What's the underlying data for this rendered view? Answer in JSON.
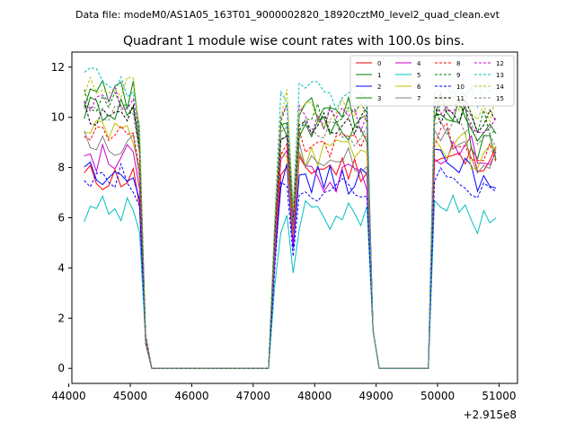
{
  "chart_data": {
    "type": "line",
    "suptitle": "Data file: modeM0/AS1A05_163T01_9000002820_18920cztM0_level2_quad_clean.evt",
    "title": "Quadrant 1 module wise count rates with 100.0s bins.",
    "xlabel": "",
    "ylabel": "",
    "x_offset_label": "+2.915e8",
    "xlim": [
      44050,
      51300
    ],
    "ylim": [
      -0.6,
      12.6
    ],
    "xticks": [
      44000,
      45000,
      46000,
      47000,
      48000,
      49000,
      50000,
      51000
    ],
    "yticks": [
      0,
      2,
      4,
      6,
      8,
      10,
      12
    ],
    "legend_position": "top-right",
    "x_start": 44250,
    "x_step": 100,
    "x_count": 68,
    "gaps": [
      [
        45350,
        47250
      ],
      [
        49050,
        49850
      ]
    ],
    "series": [
      {
        "name": "0",
        "color": "#ff0000",
        "dash": "solid",
        "levels": [
          7.6,
          7.9,
          8.0,
          8.3,
          8.4
        ]
      },
      {
        "name": "1",
        "color": "#008000",
        "dash": "solid",
        "levels": [
          10.4,
          9.6,
          9.6,
          9.9,
          8.9
        ]
      },
      {
        "name": "2",
        "color": "#0000ff",
        "dash": "solid",
        "levels": [
          7.9,
          7.8,
          7.5,
          8.3,
          7.6
        ]
      },
      {
        "name": "3",
        "color": "#008000",
        "dash": "solid",
        "levels": [
          10.9,
          9.9,
          10.2,
          10.4,
          9.6
        ]
      },
      {
        "name": "4",
        "color": "#cc00cc",
        "dash": "solid",
        "levels": [
          8.4,
          8.1,
          7.6,
          8.6,
          8.7
        ]
      },
      {
        "name": "5",
        "color": "#00bfbf",
        "dash": "solid",
        "levels": [
          6.4,
          6.0,
          6.1,
          6.7,
          5.9
        ]
      },
      {
        "name": "6",
        "color": "#bfbf00",
        "dash": "solid",
        "levels": [
          9.4,
          8.8,
          8.6,
          8.9,
          8.5
        ]
      },
      {
        "name": "7",
        "color": "#808080",
        "dash": "solid",
        "levels": [
          8.9,
          8.9,
          8.4,
          9.0,
          8.3
        ]
      },
      {
        "name": "8",
        "color": "#ff0000",
        "dash": "dashed",
        "levels": [
          9.3,
          9.1,
          8.9,
          9.3,
          8.8
        ]
      },
      {
        "name": "9",
        "color": "#008000",
        "dash": "dashed",
        "levels": [
          10.6,
          10.0,
          10.1,
          10.1,
          9.9
        ]
      },
      {
        "name": "10",
        "color": "#0000ff",
        "dash": "dashed",
        "levels": [
          7.6,
          7.2,
          7.1,
          7.4,
          7.3
        ]
      },
      {
        "name": "11",
        "color": "#000000",
        "dash": "dashed",
        "levels": [
          10.2,
          9.7,
          9.8,
          10.2,
          9.9
        ]
      },
      {
        "name": "12",
        "color": "#cc00cc",
        "dash": "dashed",
        "levels": [
          10.8,
          10.2,
          9.9,
          10.4,
          9.9
        ]
      },
      {
        "name": "13",
        "color": "#00bfbf",
        "dash": "dashed",
        "levels": [
          11.4,
          10.8,
          10.9,
          11.3,
          10.9
        ]
      },
      {
        "name": "14",
        "color": "#bfbf00",
        "dash": "dashed",
        "levels": [
          11.1,
          10.6,
          10.2,
          10.7,
          10.4
        ]
      },
      {
        "name": "15",
        "color": "#808080",
        "dash": "dashed",
        "levels": [
          10.0,
          9.6,
          9.3,
          9.6,
          9.4
        ]
      }
    ],
    "level_segments": [
      "44250-45050",
      "47450-47750",
      "47750-48850",
      "49950-50450",
      "50450-51050"
    ]
  }
}
